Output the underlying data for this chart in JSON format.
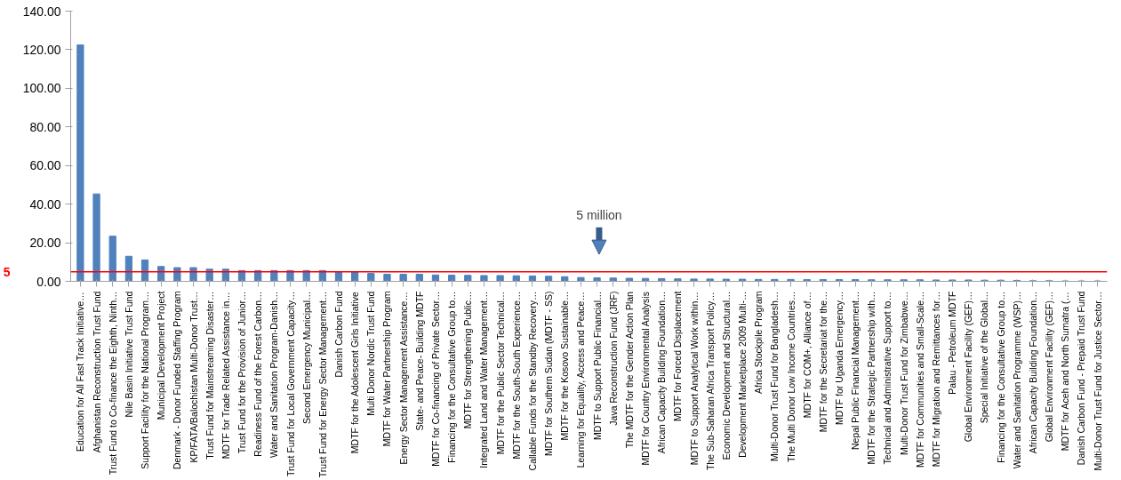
{
  "chart_data": {
    "type": "bar",
    "categories": [
      "Education for All Fast Track Initiative…",
      "Afghanistan Reconstruction Trust Fund",
      "Trust Fund to Co-finance the Eighth, Ninth…",
      "Nile Basin Initiative Trust Fund",
      "Support Facility for the National Program…",
      "Municipal Development Project",
      "Denmark - Donor Funded Staffing Program",
      "KP/FATA/Balochistan Multi-Donor Trust…",
      "Trust Fund for Mainstreaming Disaster…",
      "MDTF for Trade Related Assistance in…",
      "Trust Fund for the Provision of Junior…",
      "Readiness Fund of the Forest Carbon…",
      "Water and Sanitation Program-Danish…",
      "Trust Fund for Local Government Capacity…",
      "Second Emergency Municipal…",
      "Trust Fund for Energy Sector Management…",
      "Danish Carbon Fund",
      "MDTF for the Adolescent Girls Initiative",
      "Multi Donor Nordic Trust Fund",
      "MDTF for Water Partnership Program",
      "Energy Sector Management Assistance…",
      "State- and Peace- Building MDTF",
      "MDTF for Co-financing of Private Sector…",
      "Financing for the Consultative Group to…",
      "MDTF for Strengthening Public…",
      "Integrated Land and Water Management…",
      "MDTF for the Public Sector Technical…",
      "MDTF for the South-South Experience…",
      "Callable Funds for the Standby Recovery…",
      "MDTF for Southern Sudan (MDTF - SS)",
      "MDTF for the Kosovo Sustainable…",
      "Learning for Equality, Access and Peace…",
      "MDTF to Support Public Financial…",
      "Java Reconstruction Fund (JRF)",
      "The MDTF for the Gender Action Plan",
      "MDTF for Country Environmental Analysis",
      "African Capacity Building Foundation…",
      "MDTF for Forced Displacement",
      "MDTF to Support Analytical Work within…",
      "The Sub-Saharan Africa Transport Policy…",
      "Economic Development and Structural…",
      "Development Marketplace 2009 Multi-…",
      "Africa Stockpile Program",
      "Multi-Donor Trust Fund for Bangladesh…",
      "The Multi Donor Low Income Countries…",
      "MDTF for COM+, Alliance of…",
      "MDTF for the Secretariat for the…",
      "MDTF for Uganda Emergency…",
      "Nepal Public Financial Management…",
      "MDTF for the Strategic Partnership with…",
      "Technical and Administrative Support to…",
      "Multi-Donor Trust Fund for Zimbabwe…",
      "MDTF for Communities and Small-Scale…",
      "MDTF for Migration and Remittances for…",
      "Palau - Petroleum MDTF",
      "Global Environment Facility (GEF)…",
      "Special Initiative of the Global…",
      "Financing for the Consultative Group to…",
      "Water and Sanitation Programme (WSP)…",
      "African Capacity Building Foundation…",
      "Global Environment Facility (GEF)…",
      "MDTF for Aceh and North Sumatra (…",
      "Danish Carbon Fund - Prepaid Trust Fund",
      "Multi-Donor Trust Fund for Justice Sector…"
    ],
    "values": [
      122.5,
      45.3,
      23.4,
      13.0,
      11.1,
      7.7,
      7.1,
      7.1,
      6.3,
      6.3,
      5.6,
      5.6,
      5.6,
      5.6,
      5.6,
      5.6,
      5.0,
      5.0,
      4.1,
      3.7,
      3.7,
      3.7,
      3.3,
      3.2,
      3.1,
      3.0,
      3.0,
      2.9,
      2.8,
      2.6,
      2.4,
      2.0,
      1.8,
      1.7,
      1.6,
      1.5,
      1.4,
      1.3,
      1.2,
      1.2,
      1.1,
      1.1,
      1.0,
      1.0,
      1.0,
      0.9,
      0.9,
      0.9,
      0.9,
      0.8,
      0.8,
      0.8,
      0.8,
      0.7,
      0.7,
      0.7,
      0.6,
      0.6,
      0.5,
      0.3,
      0.3,
      0.2,
      0.2,
      0.2
    ],
    "color": "#4f81bd",
    "ylim": [
      0,
      140
    ],
    "yticks": [
      {
        "value": 0,
        "label": "0.00"
      },
      {
        "value": 20,
        "label": "20.00"
      },
      {
        "value": 40,
        "label": "40.00"
      },
      {
        "value": 60,
        "label": "60.00"
      },
      {
        "value": 80,
        "label": "80.00"
      },
      {
        "value": 100,
        "label": "100.00"
      },
      {
        "value": 120,
        "label": "120.00"
      },
      {
        "value": 140,
        "label": "140.00"
      }
    ],
    "ref_lines": [
      {
        "axis": "y",
        "value": 5,
        "label": "5",
        "color": "#ff0000"
      }
    ],
    "annotations": [
      "5 million"
    ],
    "grid": false
  }
}
